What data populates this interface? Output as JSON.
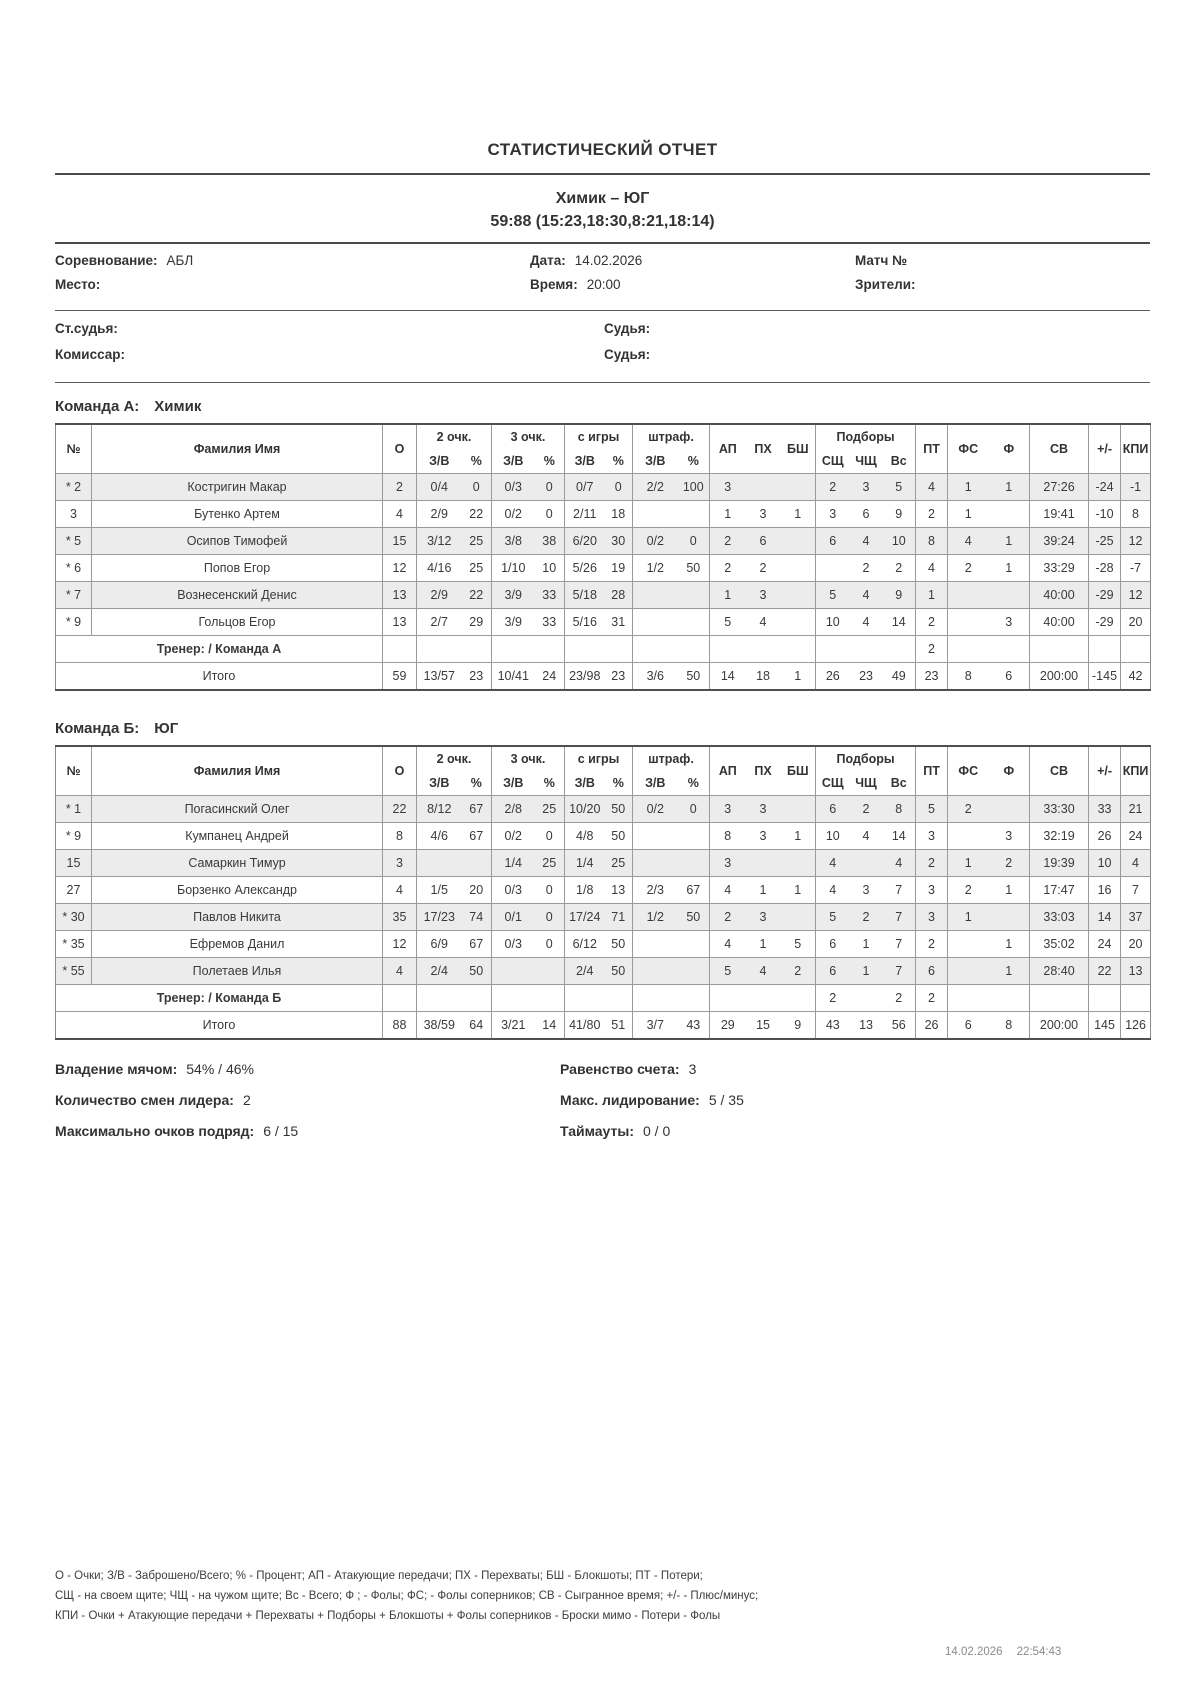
{
  "report_title": "СТАТИСТИЧЕСКИЙ ОТЧЕТ",
  "match": {
    "teams_line": "Химик – ЮГ",
    "score_line": "59:88 (15:23,18:30,8:21,18:14)"
  },
  "info": {
    "competition_label": "Соревнование:",
    "competition": "АБЛ",
    "date_label": "Дата:",
    "date": "14.02.2026",
    "match_no_label": "Матч №",
    "venue_label": "Место:",
    "venue": "",
    "time_label": "Время:",
    "time": "20:00",
    "spectators_label": "Зрители:",
    "chief_referee_label": "Ст.судья:",
    "referee1_label": "Судья:",
    "commissioner_label": "Комиссар:",
    "referee2_label": "Судья:"
  },
  "table": {
    "col_headers": {
      "no": "№",
      "name": "Фамилия Имя",
      "o": "О",
      "p2": "2 очк.",
      "p3": "3 очк.",
      "fg": "с игры",
      "ft": "штраф.",
      "zv": "З/В",
      "pct": "%",
      "ap": "АП",
      "px": "ПХ",
      "bs": "БШ",
      "reb": "Подборы",
      "r1": "СЩ",
      "r2": "ЧЩ",
      "r3": "Вс",
      "to": "ПТ",
      "fs": "ФС",
      "f": "Ф",
      "time": "СВ",
      "pm": "+/-",
      "kpi": "КПИ"
    }
  },
  "teams": [
    {
      "heading_label": "Команда А:",
      "heading_name": "Химик",
      "players": [
        {
          "no": "* 2",
          "name": "Костригин Макар",
          "o": "2",
          "p2": "0/4",
          "p2p": "0",
          "p3": "0/3",
          "p3p": "0",
          "fg": "0/7",
          "fgp": "0",
          "ft": "2/2",
          "ftp": "100",
          "ap": "3",
          "px": "",
          "bs": "",
          "r1": "2",
          "r2": "3",
          "r3": "5",
          "to": "4",
          "fs": "1",
          "f": "1",
          "time": "27:26",
          "pm": "-24",
          "kpi": "-1"
        },
        {
          "no": "3",
          "name": "Бутенко Артем",
          "o": "4",
          "p2": "2/9",
          "p2p": "22",
          "p3": "0/2",
          "p3p": "0",
          "fg": "2/11",
          "fgp": "18",
          "ft": "",
          "ftp": "",
          "ap": "1",
          "px": "3",
          "bs": "1",
          "r1": "3",
          "r2": "6",
          "r3": "9",
          "to": "2",
          "fs": "1",
          "f": "",
          "time": "19:41",
          "pm": "-10",
          "kpi": "8"
        },
        {
          "no": "* 5",
          "name": "Осипов Тимофей",
          "o": "15",
          "p2": "3/12",
          "p2p": "25",
          "p3": "3/8",
          "p3p": "38",
          "fg": "6/20",
          "fgp": "30",
          "ft": "0/2",
          "ftp": "0",
          "ap": "2",
          "px": "6",
          "bs": "",
          "r1": "6",
          "r2": "4",
          "r3": "10",
          "to": "8",
          "fs": "4",
          "f": "1",
          "time": "39:24",
          "pm": "-25",
          "kpi": "12"
        },
        {
          "no": "* 6",
          "name": "Попов Егор",
          "o": "12",
          "p2": "4/16",
          "p2p": "25",
          "p3": "1/10",
          "p3p": "10",
          "fg": "5/26",
          "fgp": "19",
          "ft": "1/2",
          "ftp": "50",
          "ap": "2",
          "px": "2",
          "bs": "",
          "r1": "",
          "r2": "2",
          "r3": "2",
          "to": "4",
          "fs": "2",
          "f": "1",
          "time": "33:29",
          "pm": "-28",
          "kpi": "-7"
        },
        {
          "no": "* 7",
          "name": "Вознесенский Денис",
          "o": "13",
          "p2": "2/9",
          "p2p": "22",
          "p3": "3/9",
          "p3p": "33",
          "fg": "5/18",
          "fgp": "28",
          "ft": "",
          "ftp": "",
          "ap": "1",
          "px": "3",
          "bs": "",
          "r1": "5",
          "r2": "4",
          "r3": "9",
          "to": "1",
          "fs": "",
          "f": "",
          "time": "40:00",
          "pm": "-29",
          "kpi": "12"
        },
        {
          "no": "* 9",
          "name": "Гольцов Егор",
          "o": "13",
          "p2": "2/7",
          "p2p": "29",
          "p3": "3/9",
          "p3p": "33",
          "fg": "5/16",
          "fgp": "31",
          "ft": "",
          "ftp": "",
          "ap": "5",
          "px": "4",
          "bs": "",
          "r1": "10",
          "r2": "4",
          "r3": "14",
          "to": "2",
          "fs": "",
          "f": "3",
          "time": "40:00",
          "pm": "-29",
          "kpi": "20"
        }
      ],
      "coach": {
        "label": "Тренер: / Команда А",
        "to": "2"
      },
      "totals_label": "Итого",
      "totals": {
        "o": "59",
        "p2": "13/57",
        "p2p": "23",
        "p3": "10/41",
        "p3p": "24",
        "fg": "23/98",
        "fgp": "23",
        "ft": "3/6",
        "ftp": "50",
        "ap": "14",
        "px": "18",
        "bs": "1",
        "r1": "26",
        "r2": "23",
        "r3": "49",
        "to": "23",
        "fs": "8",
        "f": "6",
        "time": "200:00",
        "pm": "-145",
        "kpi": "42"
      }
    },
    {
      "heading_label": "Команда Б:",
      "heading_name": "ЮГ",
      "players": [
        {
          "no": "* 1",
          "name": "Погасинский Олег",
          "o": "22",
          "p2": "8/12",
          "p2p": "67",
          "p3": "2/8",
          "p3p": "25",
          "fg": "10/20",
          "fgp": "50",
          "ft": "0/2",
          "ftp": "0",
          "ap": "3",
          "px": "3",
          "bs": "",
          "r1": "6",
          "r2": "2",
          "r3": "8",
          "to": "5",
          "fs": "2",
          "f": "",
          "time": "33:30",
          "pm": "33",
          "kpi": "21"
        },
        {
          "no": "* 9",
          "name": "Кумпанец Андрей",
          "o": "8",
          "p2": "4/6",
          "p2p": "67",
          "p3": "0/2",
          "p3p": "0",
          "fg": "4/8",
          "fgp": "50",
          "ft": "",
          "ftp": "",
          "ap": "8",
          "px": "3",
          "bs": "1",
          "r1": "10",
          "r2": "4",
          "r3": "14",
          "to": "3",
          "fs": "",
          "f": "3",
          "time": "32:19",
          "pm": "26",
          "kpi": "24"
        },
        {
          "no": "15",
          "name": "Самаркин Тимур",
          "o": "3",
          "p2": "",
          "p2p": "",
          "p3": "1/4",
          "p3p": "25",
          "fg": "1/4",
          "fgp": "25",
          "ft": "",
          "ftp": "",
          "ap": "3",
          "px": "",
          "bs": "",
          "r1": "4",
          "r2": "",
          "r3": "4",
          "to": "2",
          "fs": "1",
          "f": "2",
          "time": "19:39",
          "pm": "10",
          "kpi": "4"
        },
        {
          "no": "27",
          "name": "Борзенко Александр",
          "o": "4",
          "p2": "1/5",
          "p2p": "20",
          "p3": "0/3",
          "p3p": "0",
          "fg": "1/8",
          "fgp": "13",
          "ft": "2/3",
          "ftp": "67",
          "ap": "4",
          "px": "1",
          "bs": "1",
          "r1": "4",
          "r2": "3",
          "r3": "7",
          "to": "3",
          "fs": "2",
          "f": "1",
          "time": "17:47",
          "pm": "16",
          "kpi": "7"
        },
        {
          "no": "* 30",
          "name": "Павлов Никита",
          "o": "35",
          "p2": "17/23",
          "p2p": "74",
          "p3": "0/1",
          "p3p": "0",
          "fg": "17/24",
          "fgp": "71",
          "ft": "1/2",
          "ftp": "50",
          "ap": "2",
          "px": "3",
          "bs": "",
          "r1": "5",
          "r2": "2",
          "r3": "7",
          "to": "3",
          "fs": "1",
          "f": "",
          "time": "33:03",
          "pm": "14",
          "kpi": "37"
        },
        {
          "no": "* 35",
          "name": "Ефремов Данил",
          "o": "12",
          "p2": "6/9",
          "p2p": "67",
          "p3": "0/3",
          "p3p": "0",
          "fg": "6/12",
          "fgp": "50",
          "ft": "",
          "ftp": "",
          "ap": "4",
          "px": "1",
          "bs": "5",
          "r1": "6",
          "r2": "1",
          "r3": "7",
          "to": "2",
          "fs": "",
          "f": "1",
          "time": "35:02",
          "pm": "24",
          "kpi": "20"
        },
        {
          "no": "* 55",
          "name": "Полетаев Илья",
          "o": "4",
          "p2": "2/4",
          "p2p": "50",
          "p3": "",
          "p3p": "",
          "fg": "2/4",
          "fgp": "50",
          "ft": "",
          "ftp": "",
          "ap": "5",
          "px": "4",
          "bs": "2",
          "r1": "6",
          "r2": "1",
          "r3": "7",
          "to": "6",
          "fs": "",
          "f": "1",
          "time": "28:40",
          "pm": "22",
          "kpi": "13"
        }
      ],
      "coach": {
        "label": "Тренер: / Команда Б",
        "r1": "2",
        "r3": "2",
        "to": "2"
      },
      "totals_label": "Итого",
      "totals": {
        "o": "88",
        "p2": "38/59",
        "p2p": "64",
        "p3": "3/21",
        "p3p": "14",
        "fg": "41/80",
        "fgp": "51",
        "ft": "3/7",
        "ftp": "43",
        "ap": "29",
        "px": "15",
        "bs": "9",
        "r1": "43",
        "r2": "13",
        "r3": "56",
        "to": "26",
        "fs": "6",
        "f": "8",
        "time": "200:00",
        "pm": "145",
        "kpi": "126"
      }
    }
  ],
  "summary": {
    "left": [
      {
        "label": "Владение мячом:",
        "value": "54% / 46%"
      },
      {
        "label": "Количество смен лидера:",
        "value": "2"
      },
      {
        "label": "Максимально очков подряд:",
        "value": "6 / 15"
      }
    ],
    "right": [
      {
        "label": "Равенство счета:",
        "value": "3"
      },
      {
        "label": "Макс. лидирование:",
        "value": "5 / 35"
      },
      {
        "label": "Таймауты:",
        "value": "0 / 0"
      }
    ]
  },
  "legend_lines": [
    "О - Очки; З/В - Заброшено/Всего; % - Процент; АП - Атакующие передачи; ПХ - Перехваты; БШ - Блокшоты; ПТ - Потери;",
    "СЩ - на своем щите; ЧЩ - на чужом щите; Вс - Всего; Ф ; - Фолы; ФС; - Фолы соперников; СВ - Сыгранное время; +/- - Плюс/минус;",
    "КПИ - Очки + Атакующие передачи + Перехваты + Подборы + Блокшоты + Фолы соперников - Броски мимо - Потери - Фолы"
  ],
  "footer": {
    "date": "14.02.2026",
    "time": "22:54:43"
  }
}
